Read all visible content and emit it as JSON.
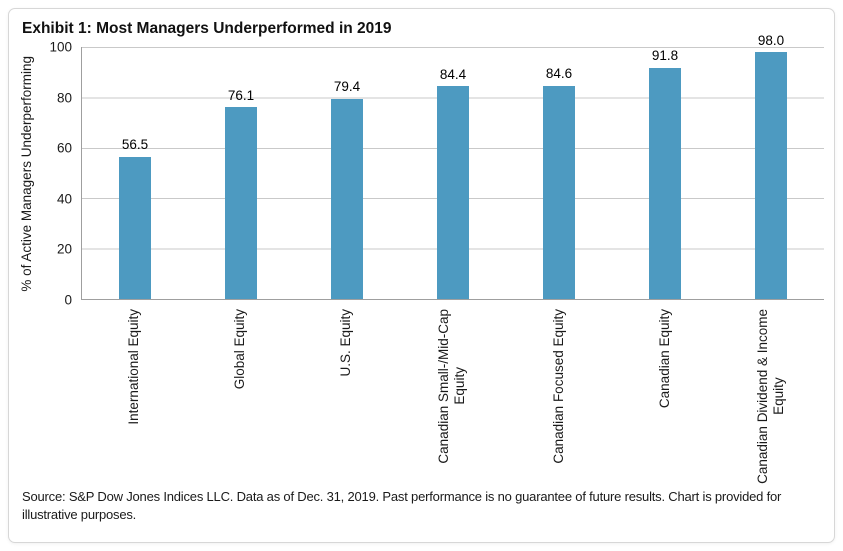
{
  "title": "Exhibit 1: Most Managers Underperformed in 2019",
  "chart_data": {
    "type": "bar",
    "categories": [
      "International Equity",
      "Global Equity",
      "U.S. Equity",
      "Canadian Small-/Mid-Cap\nEquity",
      "Canadian Focused Equity",
      "Canadian Equity",
      "Canadian Dividend & Income\nEquity"
    ],
    "values": [
      56.5,
      76.1,
      79.4,
      84.4,
      84.6,
      91.8,
      98.0
    ],
    "value_labels": [
      "56.5",
      "76.1",
      "79.4",
      "84.4",
      "84.6",
      "91.8",
      "98.0"
    ],
    "title": "Exhibit 1: Most Managers Underperformed in 2019",
    "xlabel": "",
    "ylabel": "% of Active Managers Underperforming",
    "ylim": [
      0,
      100
    ],
    "yticks": [
      "0",
      "20",
      "40",
      "60",
      "80",
      "100"
    ],
    "grid": "horizontal",
    "legend": "none",
    "colors": {
      "bar": "#4D9AC1",
      "gridline": "#C9C9C9",
      "axis_line": "#9F9F9F",
      "card_border": "#D7D7D7",
      "text": "#1A1A1A"
    }
  },
  "source": "Source: S&P Dow Jones Indices LLC. Data as of Dec. 31, 2019. Past performance is no guarantee of future results. Chart is provided for illustrative purposes."
}
